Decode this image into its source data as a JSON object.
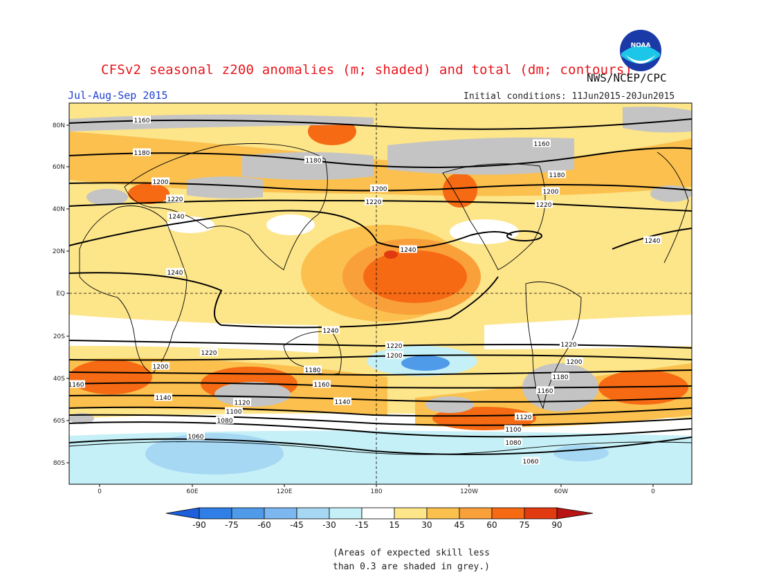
{
  "header": {
    "title": "CFSv2 seasonal z200 anomalies (m; shaded) and total (dm; contours)",
    "period": "Jul-Aug-Sep 2015",
    "initial_conditions": "Initial conditions: 11Jun2015-20Jun2015",
    "agency": "NWS/NCEP/CPC",
    "logo_text": "NOAA"
  },
  "map": {
    "projection": "cylindrical equidistant",
    "lat_labels": [
      "80N",
      "60N",
      "40N",
      "20N",
      "EQ",
      "20S",
      "40S",
      "60S",
      "80S"
    ],
    "lon_labels": [
      "0",
      "60E",
      "120E",
      "180",
      "120W",
      "60W",
      "0"
    ],
    "reference_lines": [
      "EQ",
      "180"
    ],
    "contour_labels": [
      "1160",
      "1180",
      "1200",
      "1220",
      "1240",
      "1060",
      "1080",
      "1100",
      "1120",
      "1140"
    ],
    "grey_meaning": "skill < 0.3"
  },
  "colorbar": {
    "ticks": [
      "-90",
      "-75",
      "-60",
      "-45",
      "-30",
      "-15",
      "15",
      "30",
      "45",
      "60",
      "75",
      "90"
    ],
    "colors": [
      "#1c5fdc",
      "#2f7fe6",
      "#4f9be9",
      "#7cb7ef",
      "#a6d8f4",
      "#c6f0f7",
      "#ffffff",
      "#fde58a",
      "#fbc04e",
      "#f9a03a",
      "#f66a13",
      "#e23a10",
      "#b81414"
    ]
  },
  "footer": {
    "note_line1": "(Areas of expected skill less",
    "note_line2": "than 0.3 are shaded in grey.)"
  }
}
